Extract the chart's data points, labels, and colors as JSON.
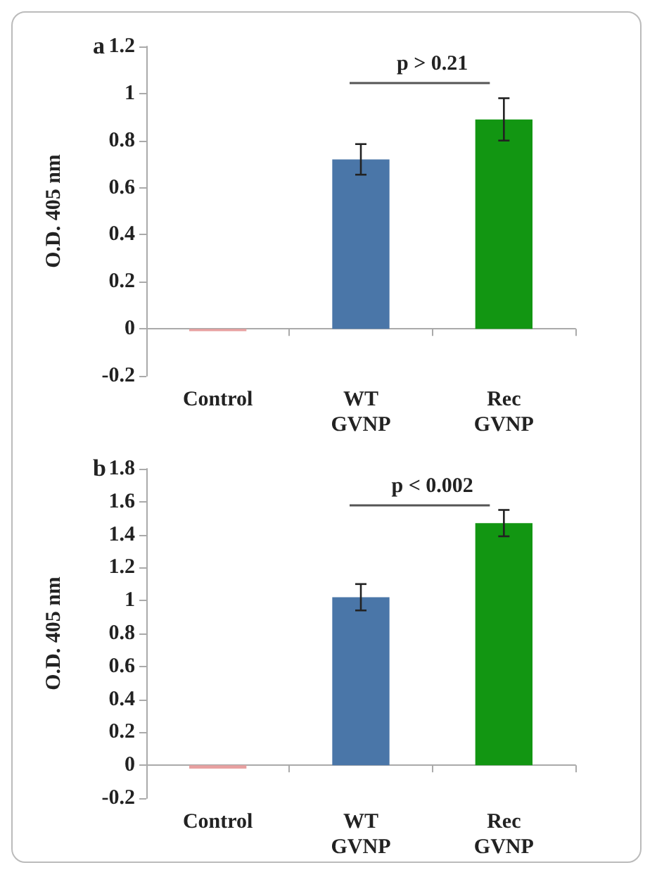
{
  "chart_data": [
    {
      "type": "bar",
      "title": "a",
      "ylabel": "O.D. 405 nm",
      "categories": [
        "Control",
        "WT\nGVNP",
        "Rec\nGVNP"
      ],
      "values": [
        -0.01,
        0.72,
        0.89
      ],
      "errors": [
        null,
        0.065,
        0.09
      ],
      "colors": [
        "#e8a0a0",
        "#4a76a8",
        "#129612"
      ],
      "ylim": [
        -0.2,
        1.2
      ],
      "yticks": [
        -0.2,
        0,
        0.2,
        0.4,
        0.6,
        0.8,
        1,
        1.2
      ],
      "annotations": [
        "p > 0.21"
      ]
    },
    {
      "type": "bar",
      "title": "b",
      "ylabel": "O.D. 405 nm",
      "categories": [
        "Control",
        "WT\nGVNP",
        "Rec\nGVNP"
      ],
      "values": [
        -0.02,
        1.02,
        1.47
      ],
      "errors": [
        null,
        0.08,
        0.08
      ],
      "colors": [
        "#e8a0a0",
        "#4a76a8",
        "#129612"
      ],
      "ylim": [
        -0.2,
        1.8
      ],
      "yticks": [
        -0.2,
        0,
        0.2,
        0.4,
        0.6,
        0.8,
        1,
        1.2,
        1.4,
        1.6,
        1.8
      ],
      "annotations": [
        "p < 0.002"
      ]
    }
  ]
}
